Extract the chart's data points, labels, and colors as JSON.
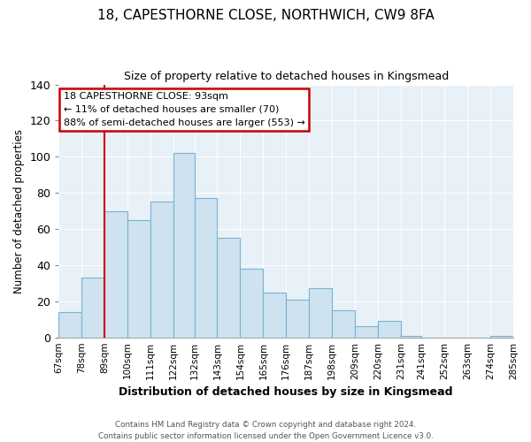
{
  "title": "18, CAPESTHORNE CLOSE, NORTHWICH, CW9 8FA",
  "subtitle": "Size of property relative to detached houses in Kingsmead",
  "xlabel": "Distribution of detached houses by size in Kingsmead",
  "ylabel": "Number of detached properties",
  "bar_color": "#cfe2f0",
  "bar_edge_color": "#7ab4d0",
  "plot_bg_color": "#e8f0f8",
  "figure_bg_color": "#ffffff",
  "grid_color": "#ffffff",
  "vline_color": "#cc0000",
  "vline_x": 89,
  "bin_edges": [
    67,
    78,
    89,
    100,
    111,
    122,
    132,
    143,
    154,
    165,
    176,
    187,
    198,
    209,
    220,
    231,
    241,
    252,
    263,
    274,
    285
  ],
  "bin_labels": [
    "67sqm",
    "78sqm",
    "89sqm",
    "100sqm",
    "111sqm",
    "122sqm",
    "132sqm",
    "143sqm",
    "154sqm",
    "165sqm",
    "176sqm",
    "187sqm",
    "198sqm",
    "209sqm",
    "220sqm",
    "231sqm",
    "241sqm",
    "252sqm",
    "263sqm",
    "274sqm",
    "285sqm"
  ],
  "counts": [
    14,
    33,
    70,
    65,
    75,
    102,
    77,
    55,
    38,
    25,
    21,
    27,
    15,
    6,
    9,
    1,
    0,
    0,
    0,
    1
  ],
  "ylim": [
    0,
    140
  ],
  "yticks": [
    0,
    20,
    40,
    60,
    80,
    100,
    120,
    140
  ],
  "annotation_title": "18 CAPESTHORNE CLOSE: 93sqm",
  "annotation_line1": "← 11% of detached houses are smaller (70)",
  "annotation_line2": "88% of semi-detached houses are larger (553) →",
  "annotation_box_color": "#ffffff",
  "annotation_box_edge": "#cc0000",
  "footer_line1": "Contains HM Land Registry data © Crown copyright and database right 2024.",
  "footer_line2": "Contains public sector information licensed under the Open Government Licence v3.0."
}
